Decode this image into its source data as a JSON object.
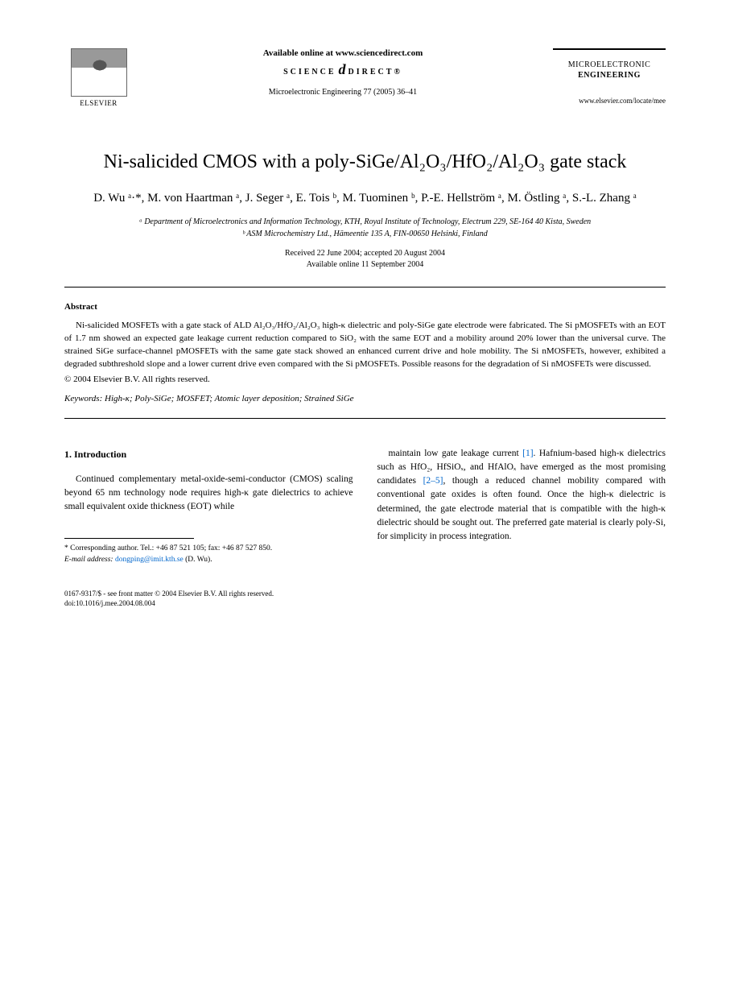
{
  "header": {
    "elsevier_label": "ELSEVIER",
    "available_text": "Available online at www.sciencedirect.com",
    "sd_prefix": "SCIENCE",
    "sd_suffix": "DIRECT®",
    "citation": "Microelectronic Engineering 77 (2005) 36–41",
    "journal_line1": "MICROELECTRONIC",
    "journal_line2": "ENGINEERING",
    "journal_url": "www.elsevier.com/locate/mee"
  },
  "title": {
    "line": "Ni-salicided CMOS with a poly-SiGe/Al₂O₃/HfO₂/Al₂O₃ gate stack"
  },
  "authors": "D. Wu ᵃ·*, M. von Haartman ᵃ, J. Seger ᵃ, E. Tois ᵇ, M. Tuominen ᵇ, P.-E. Hellström ᵃ, M. Östling ᵃ, S.-L. Zhang ᵃ",
  "affiliations": {
    "a": "ᵃ Department of Microelectronics and Information Technology, KTH, Royal Institute of Technology, Electrum 229, SE-164 40  Kista, Sweden",
    "b": "ᵇ ASM Microchemistry Ltd., Hämeentie 135 A, FIN-00650 Helsinki, Finland"
  },
  "dates": {
    "received": "Received 22 June 2004; accepted 20 August 2004",
    "online": "Available online 11 September 2004"
  },
  "abstract": {
    "label": "Abstract",
    "body": "Ni-salicided MOSFETs with a gate stack of ALD Al₂O₃/HfO₂/Al₂O₃ high-κ dielectric and poly-SiGe gate electrode were fabricated. The Si pMOSFETs with an EOT of 1.7 nm showed an expected gate leakage current reduction compared to SiO₂ with the same EOT and a mobility around 20% lower than the universal curve. The strained SiGe surface-channel pMOSFETs with the same gate stack showed an enhanced current drive and hole mobility. The Si nMOSFETs, however, exhibited a degraded subthreshold slope and a lower current drive even compared with the Si pMOSFETs. Possible reasons for the degradation of Si nMOSFETs were discussed.",
    "copyright": "© 2004 Elsevier B.V. All rights reserved."
  },
  "keywords": {
    "label": "Keywords:",
    "list": "High-κ; Poly-SiGe; MOSFET; Atomic layer deposition; Strained SiGe"
  },
  "section1": {
    "heading": "1. Introduction",
    "left_para": "Continued complementary metal-oxide-semi-conductor (CMOS) scaling beyond 65 nm technology node requires high-κ gate dielectrics to achieve small equivalent oxide thickness (EOT) while",
    "right_para_a": "maintain low gate leakage current ",
    "right_ref1": "[1]",
    "right_para_b": ". Hafnium-based high-κ dielectrics such as HfO₂, HfSiOₓ, and HfAlOₓ have emerged as the most promising candidates ",
    "right_ref2": "[2–5]",
    "right_para_c": ", though a reduced channel mobility compared with conventional gate oxides is often found. Once the high-κ dielectric is determined, the gate electrode material that is compatible with the high-κ dielectric should be sought out. The preferred gate material is clearly poly-Si, for simplicity in process integration."
  },
  "footnote": {
    "corr": "* Corresponding author. Tel.: +46 87 521 105; fax: +46 87 527 850.",
    "email_label": "E-mail address:",
    "email": "dongping@imit.kth.se",
    "email_suffix": "(D. Wu)."
  },
  "footer": {
    "line1": "0167-9317/$ - see front matter  © 2004 Elsevier B.V. All rights reserved.",
    "line2": "doi:10.1016/j.mee.2004.08.004"
  },
  "colors": {
    "link": "#0066cc",
    "text": "#000000",
    "background": "#ffffff"
  }
}
